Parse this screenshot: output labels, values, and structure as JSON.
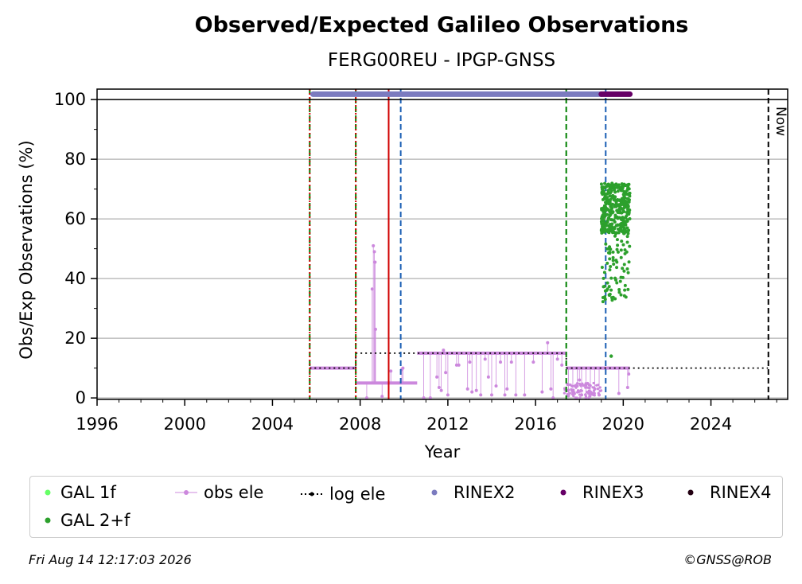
{
  "chart_data": {
    "type": "scatter",
    "title": "Observed/Expected Galileo Observations",
    "subtitle": "FERG00REU - IPGP-GNSS",
    "xlabel": "Year",
    "ylabel": "Obs/Exp Observations (%)",
    "xlim": [
      1996,
      2027.5
    ],
    "ylim": [
      -0.5,
      103.5
    ],
    "x_ticks": [
      1996,
      2000,
      2004,
      2008,
      2012,
      2016,
      2020,
      2024
    ],
    "y_ticks": [
      0,
      20,
      40,
      60,
      80,
      100
    ],
    "grid": "y",
    "reference_line": 100,
    "now_label": "Now",
    "now_x": 2026.62,
    "vlines": [
      {
        "x": 2005.7,
        "color": "#008000",
        "style": "dashed"
      },
      {
        "x": 2005.7,
        "color": "#d00000",
        "style": "dotted"
      },
      {
        "x": 2007.8,
        "color": "#008000",
        "style": "dashed"
      },
      {
        "x": 2007.8,
        "color": "#d00000",
        "style": "dotted"
      },
      {
        "x": 2009.3,
        "color": "#d00000",
        "style": "solid"
      },
      {
        "x": 2009.85,
        "color": "#1a5fb4",
        "style": "dashed"
      },
      {
        "x": 2017.4,
        "color": "#008000",
        "style": "dashed"
      },
      {
        "x": 2019.2,
        "color": "#1a5fb4",
        "style": "dashed"
      }
    ],
    "rinex_bars": [
      {
        "name": "RINEX2",
        "from": 2005.85,
        "to": 2019.0,
        "y": 101.8,
        "color": "#7b7bbf"
      },
      {
        "name": "RINEX3",
        "from": 2019.0,
        "to": 2020.3,
        "y": 101.8,
        "color": "#660066"
      }
    ],
    "log_ele": [
      {
        "from": 2005.7,
        "to": 2007.8,
        "y": 10
      },
      {
        "from": 2007.8,
        "to": 2017.4,
        "y": 15
      },
      {
        "from": 2017.4,
        "to": 2026.6,
        "y": 10
      }
    ],
    "obs_ele_segments": [
      {
        "from": 2005.7,
        "to": 2007.8,
        "y": 10
      },
      {
        "from": 2007.8,
        "to": 2010.6,
        "y": 5
      },
      {
        "from": 2010.6,
        "to": 2017.4,
        "y": 15
      },
      {
        "from": 2017.4,
        "to": 2020.3,
        "y": 10
      }
    ],
    "obs_ele_spikes": [
      {
        "x": 2008.3,
        "y": 0
      },
      {
        "x": 2008.55,
        "y": 36.5
      },
      {
        "x": 2008.6,
        "y": 51
      },
      {
        "x": 2008.65,
        "y": 49
      },
      {
        "x": 2008.68,
        "y": 45.5
      },
      {
        "x": 2008.7,
        "y": 23
      },
      {
        "x": 2009.0,
        "y": 0.5
      },
      {
        "x": 2009.4,
        "y": 9
      },
      {
        "x": 2009.9,
        "y": 9.5
      },
      {
        "x": 2009.95,
        "y": 10
      },
      {
        "x": 2010.9,
        "y": 0
      },
      {
        "x": 2011.2,
        "y": 0
      },
      {
        "x": 2011.5,
        "y": 7
      },
      {
        "x": 2011.6,
        "y": 3.5
      },
      {
        "x": 2011.7,
        "y": 2.5
      },
      {
        "x": 2011.8,
        "y": 16
      },
      {
        "x": 2011.9,
        "y": 8.5
      },
      {
        "x": 2012.0,
        "y": 1
      },
      {
        "x": 2012.4,
        "y": 11
      },
      {
        "x": 2012.5,
        "y": 11
      },
      {
        "x": 2012.9,
        "y": 3
      },
      {
        "x": 2013.0,
        "y": 12
      },
      {
        "x": 2013.1,
        "y": 2
      },
      {
        "x": 2013.3,
        "y": 2.5
      },
      {
        "x": 2013.5,
        "y": 1
      },
      {
        "x": 2013.7,
        "y": 13
      },
      {
        "x": 2013.85,
        "y": 7
      },
      {
        "x": 2014.0,
        "y": 1
      },
      {
        "x": 2014.2,
        "y": 4
      },
      {
        "x": 2014.4,
        "y": 12
      },
      {
        "x": 2014.6,
        "y": 1
      },
      {
        "x": 2014.7,
        "y": 3
      },
      {
        "x": 2014.9,
        "y": 12
      },
      {
        "x": 2015.1,
        "y": 1
      },
      {
        "x": 2015.5,
        "y": 1
      },
      {
        "x": 2015.9,
        "y": 12
      },
      {
        "x": 2016.3,
        "y": 2
      },
      {
        "x": 2016.55,
        "y": 18.5
      },
      {
        "x": 2016.7,
        "y": 3
      },
      {
        "x": 2016.8,
        "y": 0
      },
      {
        "x": 2017.0,
        "y": 13
      },
      {
        "x": 2017.2,
        "y": 11
      },
      {
        "x": 2017.5,
        "y": 1
      },
      {
        "x": 2017.7,
        "y": 2
      },
      {
        "x": 2017.9,
        "y": 4
      },
      {
        "x": 2018.0,
        "y": 6
      },
      {
        "x": 2018.1,
        "y": 1
      },
      {
        "x": 2018.3,
        "y": 0
      },
      {
        "x": 2018.5,
        "y": 2
      },
      {
        "x": 2018.7,
        "y": 3
      },
      {
        "x": 2018.9,
        "y": 1
      },
      {
        "x": 2019.8,
        "y": 1.5
      },
      {
        "x": 2020.2,
        "y": 3.5
      },
      {
        "x": 2020.25,
        "y": 8
      }
    ],
    "gal_2f": {
      "x_range": [
        2019.0,
        2020.3
      ],
      "y_core": [
        55,
        72
      ],
      "y_min": 32,
      "y_max": 73,
      "outliers": [
        {
          "x": 2019.45,
          "y": 14
        }
      ]
    },
    "legend": [
      {
        "label": "GAL 1f",
        "color": "#66ff66",
        "marker": "dot"
      },
      {
        "label": "obs ele",
        "color": "#cc88dd",
        "marker": "line-dot"
      },
      {
        "label": "log ele",
        "color": "#000000",
        "marker": "dotted-line"
      },
      {
        "label": "RINEX2",
        "color": "#7b7bbf",
        "marker": "dot"
      },
      {
        "label": "RINEX3",
        "color": "#660066",
        "marker": "dot"
      },
      {
        "label": "RINEX4",
        "color": "#220011",
        "marker": "dot"
      },
      {
        "label": "GAL 2+f",
        "color": "#2ca02c",
        "marker": "dot"
      }
    ],
    "legend_placement": "bottom"
  },
  "footer": {
    "timestamp": "Fri Aug 14 12:17:03 2026",
    "credit": "©GNSS@ROB"
  }
}
